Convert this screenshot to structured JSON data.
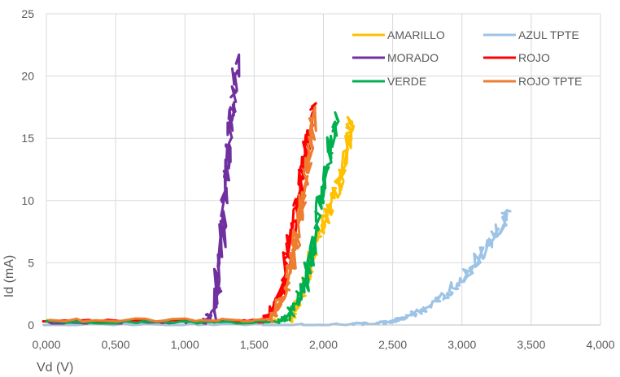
{
  "chart_data": {
    "type": "scatter",
    "xlabel": "Vd (V)",
    "ylabel": "Id (mA)",
    "xlim": [
      0,
      4
    ],
    "ylim": [
      0,
      25
    ],
    "x_ticks": [
      "0,000",
      "0,500",
      "1,000",
      "1,500",
      "2,000",
      "2,500",
      "3,000",
      "3,500",
      "4,000"
    ],
    "y_ticks": [
      "0",
      "5",
      "10",
      "15",
      "20",
      "25"
    ],
    "grid": true,
    "legend_position": "top-right, two columns",
    "series": [
      {
        "name": "AMARILLO",
        "color": "#FFC000",
        "x": [
          0.0,
          1.0,
          1.6,
          1.75,
          1.8,
          1.85,
          1.88,
          1.92,
          1.95,
          2.0,
          2.05,
          2.1,
          2.15,
          2.18,
          2.2
        ],
        "y": [
          0.3,
          0.3,
          0.3,
          0.5,
          1.2,
          2.5,
          4.0,
          5.5,
          7.0,
          8.0,
          9.5,
          11.0,
          13.0,
          15.0,
          16.3
        ]
      },
      {
        "name": "AZUL TPTE",
        "color": "#9DC3E6",
        "x": [
          0.0,
          1.0,
          1.8,
          2.2,
          2.4,
          2.5,
          2.6,
          2.7,
          2.8,
          2.9,
          3.0,
          3.1,
          3.2,
          3.3,
          3.33
        ],
        "y": [
          0.0,
          0.0,
          0.0,
          0.05,
          0.15,
          0.3,
          0.6,
          1.1,
          1.8,
          2.7,
          3.8,
          5.0,
          6.5,
          8.3,
          9.2
        ]
      },
      {
        "name": "MORADO",
        "color": "#7030A0",
        "x": [
          0.0,
          0.8,
          1.15,
          1.2,
          1.23,
          1.26,
          1.28,
          1.3,
          1.32,
          1.33,
          1.35,
          1.37
        ],
        "y": [
          0.2,
          0.2,
          0.3,
          1.0,
          3.0,
          6.0,
          9.0,
          12.0,
          15.0,
          17.0,
          19.0,
          21.0
        ]
      },
      {
        "name": "ROJO",
        "color": "#FF0000",
        "x": [
          0.0,
          1.0,
          1.55,
          1.62,
          1.67,
          1.72,
          1.76,
          1.8,
          1.84,
          1.87,
          1.9,
          1.93
        ],
        "y": [
          0.3,
          0.3,
          0.3,
          0.8,
          2.0,
          4.0,
          6.5,
          9.0,
          11.5,
          13.5,
          15.5,
          17.5
        ]
      },
      {
        "name": "VERDE",
        "color": "#00B050",
        "x": [
          0.0,
          1.0,
          1.68,
          1.74,
          1.8,
          1.86,
          1.9,
          1.94,
          1.98,
          2.02,
          2.06,
          2.1
        ],
        "y": [
          0.2,
          0.2,
          0.2,
          0.6,
          1.5,
          3.0,
          5.0,
          7.5,
          10.0,
          12.5,
          14.8,
          16.5
        ]
      },
      {
        "name": "ROJO TPTE",
        "color": "#ED7D31",
        "x": [
          0.0,
          1.0,
          1.6,
          1.66,
          1.72,
          1.77,
          1.81,
          1.85,
          1.88,
          1.91,
          1.94
        ],
        "y": [
          0.4,
          0.4,
          0.4,
          1.0,
          2.5,
          4.8,
          7.3,
          10.0,
          12.5,
          15.0,
          17.5
        ]
      }
    ]
  }
}
